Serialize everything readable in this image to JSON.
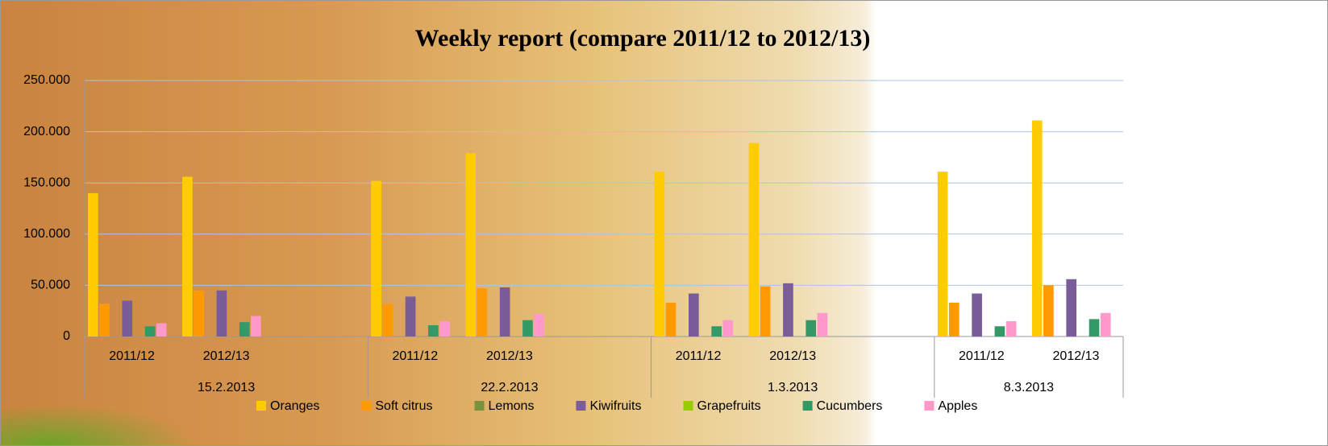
{
  "chart_data": {
    "type": "bar",
    "title": "Weekly report (compare 2011/12 to 2012/13)",
    "categories": [
      "2011/12",
      "2012/13",
      null,
      "2011/12",
      "2012/13",
      null,
      "2011/12",
      "2012/13",
      null,
      "2011/12",
      "2012/13"
    ],
    "groups": [
      "15.2.2013",
      "22.2.2013",
      "1.3.2013",
      "8.3.2013"
    ],
    "series": [
      {
        "name": "Oranges",
        "color": "#ffcc00",
        "values": [
          140000,
          156000,
          null,
          152000,
          179000,
          null,
          161000,
          189000,
          null,
          161000,
          211000
        ]
      },
      {
        "name": "Soft citrus",
        "color": "#ff9900",
        "values": [
          32000,
          45000,
          null,
          32000,
          47000,
          null,
          33000,
          49000,
          null,
          33000,
          50000
        ]
      },
      {
        "name": "Lemons",
        "color": "#77933c",
        "values": [
          0,
          0,
          null,
          0,
          0,
          null,
          0,
          0,
          null,
          0,
          0
        ]
      },
      {
        "name": "Kiwifruits",
        "color": "#7a5c99",
        "values": [
          35000,
          45000,
          null,
          39000,
          48000,
          null,
          42000,
          52000,
          null,
          42000,
          56000
        ]
      },
      {
        "name": "Grapefruits",
        "color": "#99cc00",
        "values": [
          0,
          0,
          null,
          0,
          0,
          null,
          0,
          0,
          null,
          0,
          0
        ]
      },
      {
        "name": "Cucumbers",
        "color": "#339966",
        "values": [
          10000,
          14000,
          null,
          11000,
          16000,
          null,
          10000,
          16000,
          null,
          10000,
          17000
        ]
      },
      {
        "name": "Apples",
        "color": "#ff99cc",
        "values": [
          13000,
          20000,
          null,
          15000,
          22000,
          null,
          16000,
          23000,
          null,
          15000,
          23000
        ]
      }
    ],
    "ylim": [
      0,
      250000
    ],
    "yticks": [
      0,
      {
        "value": 50000,
        "label": "50.000"
      },
      {
        "value": 100000,
        "label": "100.000"
      },
      {
        "value": 150000,
        "label": "150.000"
      },
      {
        "value": 200000,
        "label": "200.000"
      },
      {
        "value": 250000,
        "label": "250.000"
      }
    ],
    "grid": true,
    "legend": "bottom"
  }
}
